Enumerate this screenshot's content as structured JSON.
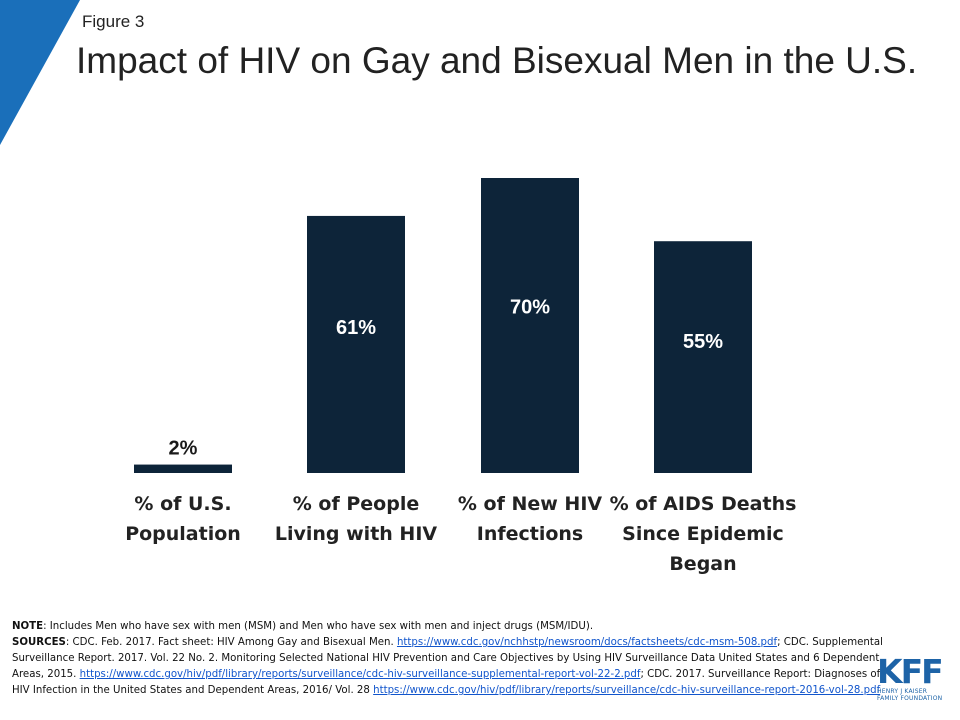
{
  "figure_label": "Figure 3",
  "title": "Impact of HIV on Gay and Bisexual Men in the U.S.",
  "colors": {
    "bar": "#0d2439",
    "accent": "#1a6fba",
    "logo": "#1d63a7",
    "link": "#1155cc"
  },
  "chart_data": {
    "type": "bar",
    "categories": [
      "% of U.S.\nPopulation",
      "% of People\nLiving with HIV",
      "% of New HIV\nInfections",
      "% of AIDS Deaths\nSince Epidemic\nBegan"
    ],
    "values": [
      2,
      61,
      70,
      55
    ],
    "data_labels": [
      "2%",
      "61%",
      "70%",
      "55%"
    ],
    "ylim": [
      0,
      70
    ],
    "grid": false
  },
  "notes": {
    "note_label": "NOTE",
    "note_text": ": Includes Men who have sex with men (MSM) and Men who have sex with men and inject drugs (MSM/IDU).",
    "sources_label": "SOURCES",
    "sources_text_1": ": CDC. Feb. 2017. Fact sheet: HIV Among Gay and Bisexual Men. ",
    "link_1": "https://www.cdc.gov/nchhstp/newsroom/docs/factsheets/cdc-msm-508.pdf",
    "sources_text_2": "; CDC. Supplemental Surveillance Report. 2017. Vol. 22 No. 2. Monitoring Selected National HIV Prevention and Care Objectives by Using HIV Surveillance Data United States and 6 Dependent Areas, 2015. ",
    "link_2": "https://www.cdc.gov/hiv/pdf/library/reports/surveillance/cdc-hiv-surveillance-supplemental-report-vol-22-2.pdf",
    "sources_text_3": "; CDC. 2017. Surveillance Report: Diagnoses of HIV Infection in the United States and Dependent Areas, 2016/ Vol. 28 ",
    "link_3": "https://www.cdc.gov/hiv/pdf/library/reports/surveillance/cdc-hiv-surveillance-report-2016-vol-28.pdf"
  },
  "logo": {
    "letters": "KFF",
    "subtitle": "HENRY J KAISER\nFAMILY FOUNDATION"
  }
}
